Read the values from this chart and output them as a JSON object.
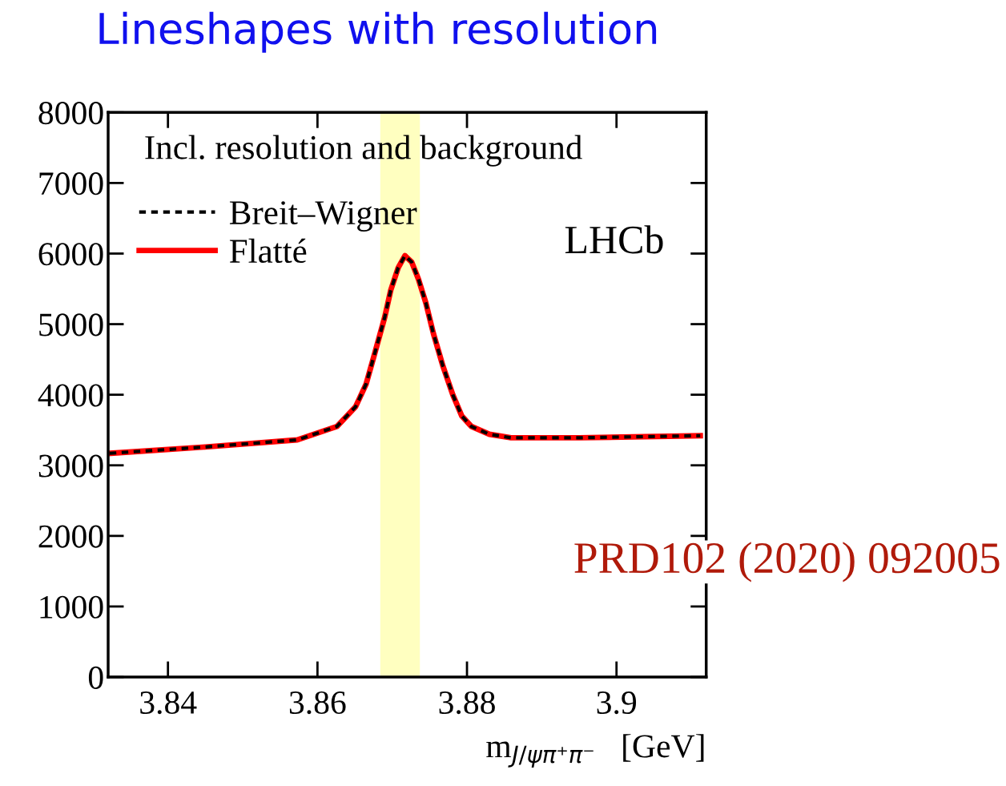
{
  "chart_data": {
    "type": "line",
    "title": "Lineshapes with resolution",
    "xlabel": "m$_{J/ψπ⁺π⁻}$   [GeV]",
    "x": [
      3.8322,
      3.845,
      3.8573,
      3.8626,
      3.8651,
      3.8665,
      3.8677,
      3.869,
      3.8698,
      3.8708,
      3.8717,
      3.8726,
      3.8735,
      3.8745,
      3.8755,
      3.8768,
      3.8781,
      3.8793,
      3.8806,
      3.883,
      3.8859,
      3.895,
      3.9112
    ],
    "series": [
      {
        "name": "Flatté",
        "color": "#ff0000",
        "line_style": "solid",
        "values": [
          3170,
          3260,
          3360,
          3550,
          3830,
          4150,
          4600,
          5100,
          5480,
          5800,
          5970,
          5880,
          5640,
          5300,
          4870,
          4400,
          4000,
          3700,
          3550,
          3440,
          3390,
          3390,
          3420
        ]
      },
      {
        "name": "Breit–Wigner",
        "color": "#000000",
        "line_style": "dashed",
        "values": [
          3170,
          3260,
          3360,
          3550,
          3830,
          4150,
          4600,
          5100,
          5480,
          5800,
          5970,
          5880,
          5640,
          5300,
          4870,
          4400,
          4000,
          3700,
          3550,
          3440,
          3390,
          3390,
          3420
        ]
      }
    ],
    "xlim": [
      3.832,
      3.912
    ],
    "xticks": [
      3.84,
      3.86,
      3.88,
      3.9
    ],
    "ylim": [
      0,
      8000
    ],
    "yticks": [
      0,
      1000,
      2000,
      3000,
      4000,
      5000,
      6000,
      7000,
      8000
    ],
    "bands": [
      {
        "axis": "x",
        "from": 3.8684,
        "to": 3.8737,
        "color": "#ffffc0"
      }
    ],
    "annotations": [
      "Incl. resolution and background",
      "LHCb",
      "PRD102 (2020) 092005"
    ],
    "legend": "top left",
    "grid": false
  }
}
